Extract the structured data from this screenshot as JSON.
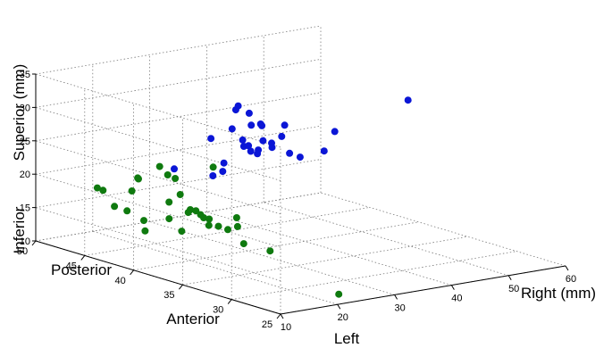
{
  "chart_data": {
    "type": "scatter",
    "projection": "3d",
    "axes": {
      "x": {
        "labels_low_high": [
          "Left",
          "Right (mm)"
        ],
        "range": [
          10,
          60
        ],
        "ticks": [
          10,
          20,
          30,
          40,
          50,
          60
        ]
      },
      "y": {
        "labels_low_high": [
          "Anterior",
          "Posterior"
        ],
        "range": [
          25,
          50
        ],
        "ticks": [
          25,
          30,
          35,
          40,
          45,
          50
        ]
      },
      "z": {
        "labels_low_high": [
          "Inferior",
          "Superior (mm)"
        ],
        "range": [
          10,
          35
        ],
        "ticks": [
          10,
          15,
          20,
          25,
          30,
          35
        ]
      }
    },
    "grid": true,
    "series": [
      {
        "color": "#0f7a0f",
        "points": [
          [
            11,
            44.3,
            20.3
          ],
          [
            11.5,
            44,
            20
          ],
          [
            13.5,
            44,
            17.3
          ],
          [
            12,
            40,
            15.6
          ],
          [
            14,
            43,
            17
          ],
          [
            13.5,
            41,
            16.5
          ],
          [
            14.5,
            39,
            17.5
          ],
          [
            15,
            38,
            16
          ],
          [
            14.5,
            42.8,
            20
          ],
          [
            15,
            42.5,
            22
          ],
          [
            16,
            43,
            21.5
          ],
          [
            16.2,
            40,
            19.3
          ],
          [
            16.5,
            38,
            19
          ],
          [
            17.3,
            39.5,
            20.5
          ],
          [
            17,
            38.5,
            18.3
          ],
          [
            18,
            38.3,
            18.5
          ],
          [
            18.3,
            38,
            18
          ],
          [
            18,
            37.5,
            17.8
          ],
          [
            18.6,
            37.3,
            17.6
          ],
          [
            17.7,
            36.8,
            17
          ],
          [
            19.2,
            36.7,
            16.7
          ],
          [
            20,
            36.2,
            16.3
          ],
          [
            20.5,
            35.5,
            17
          ],
          [
            21.2,
            36,
            18
          ],
          [
            20,
            37.7,
            25
          ],
          [
            19,
            41,
            22
          ],
          [
            18,
            42,
            23.5
          ],
          [
            19,
            34,
            15.3
          ],
          [
            17,
            40.6,
            23
          ],
          [
            25,
            34.8,
            13
          ],
          [
            24,
            27.2,
            10
          ]
        ]
      },
      {
        "color": "#0b16d6",
        "points": [
          [
            33,
            45.3,
            18.5
          ],
          [
            30,
            47.5,
            19
          ],
          [
            32.5,
            44,
            19.8
          ],
          [
            33,
            45.5,
            24
          ],
          [
            35,
            43.3,
            23.5
          ],
          [
            37.3,
            41.8,
            24.3
          ],
          [
            38.2,
            41.3,
            25.4
          ],
          [
            36,
            44,
            24
          ],
          [
            36.5,
            43.7,
            23.2
          ],
          [
            36.5,
            42.7,
            23
          ],
          [
            36,
            42.5,
            22.6
          ],
          [
            35.7,
            43,
            22.8
          ],
          [
            37.5,
            42.8,
            24.2
          ],
          [
            37.5,
            44,
            26
          ],
          [
            38,
            44.5,
            27.5
          ],
          [
            36.5,
            45,
            28
          ],
          [
            38.5,
            43.5,
            26
          ],
          [
            40,
            44.5,
            25.6
          ],
          [
            39.5,
            46.5,
            27.5
          ],
          [
            42.5,
            43.5,
            25.5
          ],
          [
            41.5,
            44.2,
            22
          ],
          [
            42.5,
            43,
            21.5
          ],
          [
            43.5,
            42.5,
            21
          ],
          [
            46,
            41.5,
            22
          ],
          [
            47,
            41,
            25
          ],
          [
            54.7,
            38,
            29.9
          ],
          [
            35,
            44.5,
            25.6
          ],
          [
            31.5,
            43.3,
            21.5
          ]
        ]
      }
    ]
  }
}
